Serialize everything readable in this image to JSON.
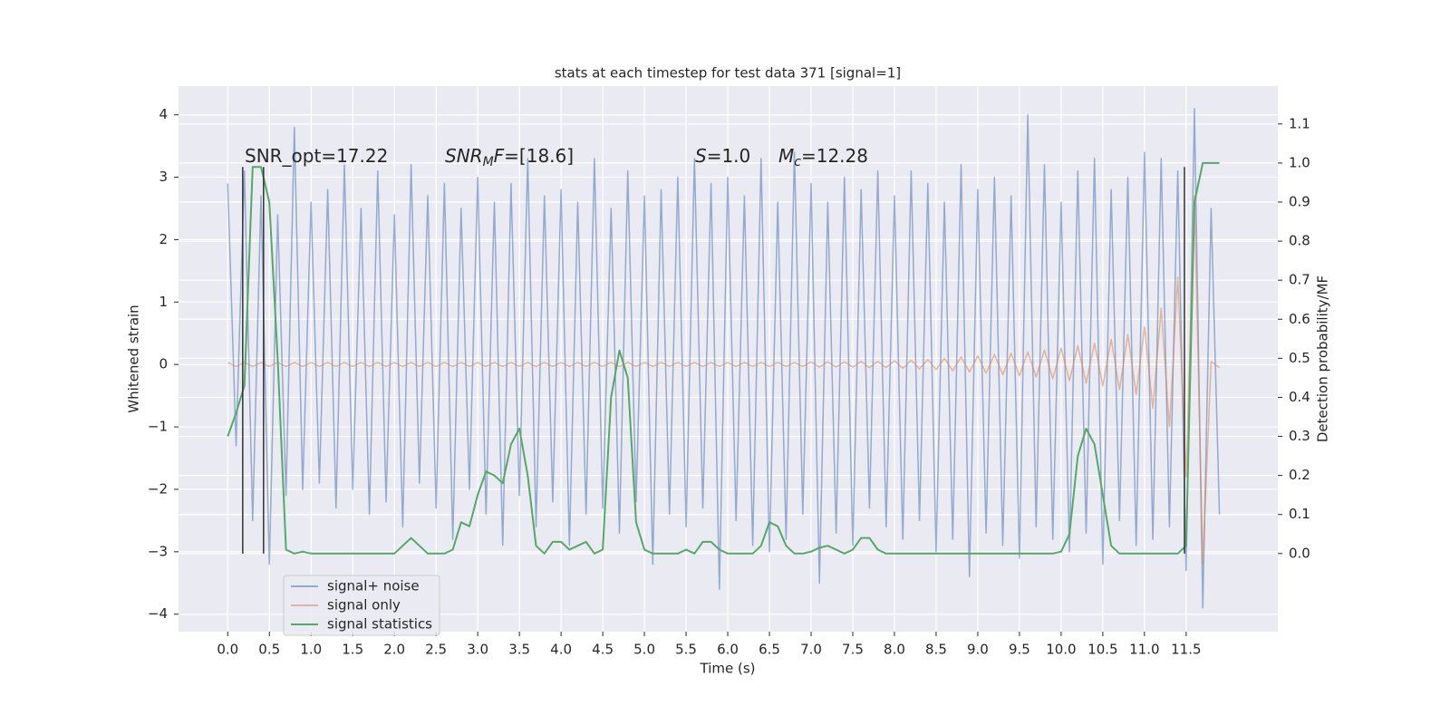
{
  "chart_data": {
    "type": "line",
    "title": "stats at each timestep for test data 371 [signal=1]",
    "xlabel": "Time (s)",
    "ylabel": "Whitened strain",
    "y2label": "Detection probability/MF",
    "annotations": [
      [
        {
          "text": "SNR_opt=17.22"
        }
      ],
      [
        {
          "text": "SNR",
          "italic": true
        },
        {
          "text": "M",
          "italic": true,
          "sub": true
        },
        {
          "text": "F",
          "italic": true
        },
        {
          "text": "=[18.6]"
        }
      ],
      [
        {
          "text": "S",
          "italic": true
        },
        {
          "text": "=1.0"
        }
      ],
      [
        {
          "text": "M",
          "italic": true
        },
        {
          "text": "c",
          "italic": true,
          "sub": true
        },
        {
          "text": "=12.28"
        }
      ]
    ],
    "x": [
      0.0,
      0.1,
      0.2,
      0.3,
      0.4,
      0.5,
      0.6,
      0.7,
      0.8,
      0.9,
      1.0,
      1.1,
      1.2,
      1.3,
      1.4,
      1.5,
      1.6,
      1.7,
      1.8,
      1.9,
      2.0,
      2.1,
      2.2,
      2.3,
      2.4,
      2.5,
      2.6,
      2.7,
      2.8,
      2.9,
      3.0,
      3.1,
      3.2,
      3.3,
      3.4,
      3.5,
      3.6,
      3.7,
      3.8,
      3.9,
      4.0,
      4.1,
      4.2,
      4.3,
      4.4,
      4.5,
      4.6,
      4.7,
      4.8,
      4.9,
      5.0,
      5.1,
      5.2,
      5.3,
      5.4,
      5.5,
      5.6,
      5.7,
      5.8,
      5.9,
      6.0,
      6.1,
      6.2,
      6.3,
      6.4,
      6.5,
      6.6,
      6.7,
      6.8,
      6.9,
      7.0,
      7.1,
      7.2,
      7.3,
      7.4,
      7.5,
      7.6,
      7.7,
      7.8,
      7.9,
      8.0,
      8.1,
      8.2,
      8.3,
      8.4,
      8.5,
      8.6,
      8.7,
      8.8,
      8.9,
      9.0,
      9.1,
      9.2,
      9.3,
      9.4,
      9.5,
      9.6,
      9.7,
      9.8,
      9.9,
      10.0,
      10.1,
      10.2,
      10.3,
      10.4,
      10.5,
      10.6,
      10.7,
      10.8,
      10.9,
      11.0,
      11.1,
      11.2,
      11.3,
      11.4,
      11.5,
      11.6,
      11.7,
      11.8,
      11.9
    ],
    "series": [
      {
        "name": "signal+ noise",
        "color": "#4c72b0",
        "values": [
          2.9,
          -1.3,
          3.1,
          -2.5,
          2.7,
          -3.2,
          2.4,
          -2.1,
          3.8,
          -2.0,
          2.6,
          -1.9,
          2.8,
          -2.3,
          3.2,
          -2.0,
          2.5,
          -2.4,
          3.1,
          -2.2,
          2.4,
          -2.6,
          3.2,
          -1.9,
          2.7,
          -2.3,
          2.9,
          -2.8,
          2.5,
          -2.0,
          3.0,
          -2.4,
          2.6,
          -2.9,
          2.9,
          -2.1,
          3.3,
          -2.6,
          2.7,
          -2.2,
          2.8,
          -2.9,
          2.6,
          -2.4,
          3.3,
          -2.3,
          2.5,
          -2.7,
          3.1,
          -2.2,
          2.7,
          -3.2,
          2.8,
          -2.4,
          3.0,
          -2.6,
          3.3,
          -2.3,
          2.9,
          -3.6,
          3.0,
          -2.5,
          2.7,
          -2.9,
          3.3,
          -3.0,
          2.6,
          -2.8,
          3.4,
          -2.4,
          2.9,
          -3.5,
          2.6,
          -2.7,
          3.0,
          -2.9,
          2.8,
          -2.3,
          3.1,
          -2.6,
          2.7,
          -2.8,
          3.1,
          -2.5,
          2.9,
          -3.0,
          2.6,
          -2.8,
          3.2,
          -3.4,
          2.8,
          -2.7,
          3.0,
          -2.9,
          2.7,
          -3.1,
          4.0,
          -2.6,
          3.2,
          -2.8,
          2.6,
          -3.0,
          3.1,
          -2.7,
          3.3,
          -3.2,
          2.8,
          -2.5,
          3.0,
          -2.9,
          3.4,
          -2.8,
          3.3,
          -2.6,
          3.1,
          -3.3,
          4.1,
          -3.9,
          2.5,
          -2.4
        ]
      },
      {
        "name": "signal only",
        "color": "#dd8452",
        "values": [
          0.03,
          -0.03,
          0.03,
          -0.03,
          0.03,
          -0.03,
          0.03,
          -0.03,
          0.03,
          -0.03,
          0.03,
          -0.03,
          0.03,
          -0.03,
          0.03,
          -0.03,
          0.03,
          -0.03,
          0.03,
          -0.03,
          0.03,
          -0.03,
          0.03,
          -0.03,
          0.03,
          -0.03,
          0.03,
          -0.03,
          0.03,
          -0.03,
          0.03,
          -0.03,
          0.03,
          -0.03,
          0.03,
          -0.03,
          0.03,
          -0.03,
          0.03,
          -0.03,
          0.03,
          -0.03,
          0.03,
          -0.03,
          0.03,
          -0.03,
          0.03,
          -0.03,
          0.03,
          -0.03,
          0.03,
          -0.03,
          0.03,
          -0.03,
          0.03,
          -0.03,
          0.03,
          -0.03,
          0.03,
          -0.03,
          0.03,
          -0.03,
          0.03,
          -0.03,
          0.03,
          -0.03,
          0.03,
          -0.03,
          0.03,
          -0.03,
          0.04,
          -0.04,
          0.04,
          -0.04,
          0.04,
          -0.04,
          0.05,
          -0.05,
          0.05,
          -0.05,
          0.06,
          -0.06,
          0.07,
          -0.07,
          0.08,
          -0.08,
          0.1,
          -0.1,
          0.12,
          -0.12,
          0.14,
          -0.14,
          0.16,
          -0.16,
          0.18,
          -0.18,
          0.2,
          -0.2,
          0.23,
          -0.23,
          0.26,
          -0.26,
          0.3,
          -0.3,
          0.34,
          -0.34,
          0.4,
          -0.4,
          0.48,
          -0.48,
          0.6,
          -0.7,
          0.9,
          -1.0,
          1.4,
          -1.8,
          2.7,
          -3.2,
          0.05,
          -0.05
        ]
      },
      {
        "name": "signal statistics",
        "color": "#55a868",
        "axis": "y2",
        "values": [
          0.3,
          0.36,
          0.43,
          0.99,
          0.99,
          0.9,
          0.5,
          0.01,
          0,
          0.005,
          0,
          0,
          0,
          0,
          0,
          0,
          0,
          0,
          0,
          0,
          0,
          0.02,
          0.04,
          0.02,
          0,
          0,
          0,
          0.01,
          0.08,
          0.07,
          0.15,
          0.21,
          0.2,
          0.18,
          0.28,
          0.32,
          0.2,
          0.02,
          0,
          0.03,
          0.03,
          0.01,
          0.02,
          0.03,
          0,
          0.01,
          0.4,
          0.52,
          0.45,
          0.08,
          0.01,
          0,
          0,
          0,
          0,
          0.01,
          0,
          0.03,
          0.03,
          0.01,
          0,
          0,
          0,
          0,
          0.02,
          0.08,
          0.07,
          0.02,
          0,
          0,
          0.005,
          0.015,
          0.02,
          0.01,
          0,
          0.01,
          0.04,
          0.04,
          0.01,
          0,
          0,
          0,
          0,
          0,
          0,
          0,
          0,
          0,
          0,
          0,
          0,
          0,
          0,
          0,
          0,
          0,
          0,
          0,
          0,
          0,
          0.005,
          0.05,
          0.25,
          0.32,
          0.28,
          0.15,
          0.02,
          0,
          0,
          0,
          0,
          0,
          0,
          0,
          0,
          0.02,
          0.9,
          1.0,
          1.0,
          1.0
        ]
      }
    ],
    "vlines": [
      0.18,
      0.43,
      11.48
    ],
    "vline_color": "#333333",
    "xlim": [
      -0.59,
      12.6
    ],
    "ylim": [
      -4.28,
      4.46
    ],
    "y2lim": [
      -0.2,
      1.197
    ],
    "xticks": [
      {
        "value": 0,
        "label": "0.0"
      },
      0.5,
      {
        "value": 1,
        "label": "1.0"
      },
      1.5,
      {
        "value": 2,
        "label": "2.0"
      },
      2.5,
      {
        "value": 3,
        "label": "3.0"
      },
      3.5,
      {
        "value": 4,
        "label": "4.0"
      },
      4.5,
      {
        "value": 5,
        "label": "5.0"
      },
      5.5,
      {
        "value": 6,
        "label": "6.0"
      },
      6.5,
      {
        "value": 7,
        "label": "7.0"
      },
      7.5,
      {
        "value": 8,
        "label": "8.0"
      },
      8.5,
      {
        "value": 9,
        "label": "9.0"
      },
      9.5,
      {
        "value": 10,
        "label": "10.0"
      },
      10.5,
      {
        "value": 11,
        "label": "11.0"
      },
      11.5
    ],
    "yticks": [
      {
        "value": -4,
        "label": "−4"
      },
      {
        "value": -3,
        "label": "−3"
      },
      {
        "value": -2,
        "label": "−2"
      },
      {
        "value": -1,
        "label": "−1"
      },
      0,
      1,
      2,
      3,
      4
    ],
    "y2ticks": [
      {
        "value": 0,
        "label": "0.0"
      },
      0.1,
      0.2,
      0.3,
      0.4,
      0.5,
      0.6,
      0.7,
      0.8,
      0.9,
      {
        "value": 1,
        "label": "1.0"
      },
      1.1
    ],
    "grid": true,
    "legend": "lower left"
  }
}
